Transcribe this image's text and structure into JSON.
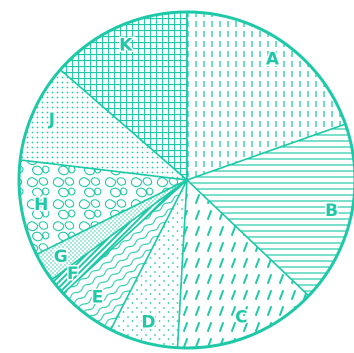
{
  "chart_data": {
    "type": "pie",
    "title": "",
    "legend": "none",
    "start_angle_deg": 0,
    "direction": "clockwise",
    "color": "#1fc9a8",
    "slices": [
      {
        "label": "A",
        "value": 19.6,
        "pattern": "vdash"
      },
      {
        "label": "B",
        "value": 17.5,
        "pattern": "hlines"
      },
      {
        "label": "C",
        "value": 13.8,
        "pattern": "slashdash"
      },
      {
        "label": "D",
        "value": 6.6,
        "pattern": "dots"
      },
      {
        "label": "E",
        "value": 5.7,
        "pattern": "waves"
      },
      {
        "label": "F",
        "value": 1.7,
        "pattern": "diaghatch"
      },
      {
        "label": "G",
        "value": 2.8,
        "pattern": "finedots"
      },
      {
        "label": "H",
        "value": 9.2,
        "pattern": "camo"
      },
      {
        "label": "J",
        "value": 9.5,
        "pattern": "stipple"
      },
      {
        "label": "K",
        "value": 13.6,
        "pattern": "grid"
      }
    ]
  }
}
